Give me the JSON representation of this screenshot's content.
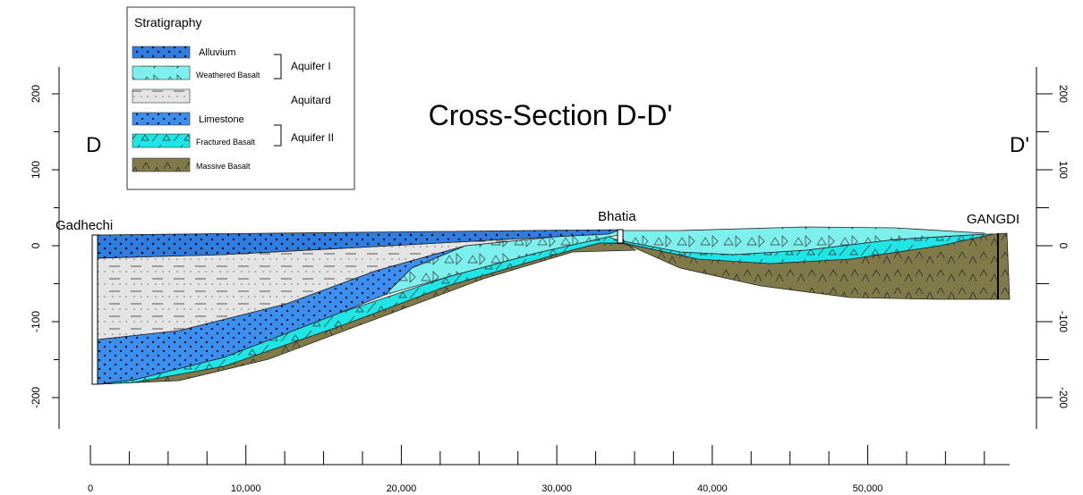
{
  "title": "Cross-Section D-D'",
  "section_ends": [
    "D",
    "D'"
  ],
  "wells": [
    "Gadhechi",
    "Bhatia",
    "GANGDI"
  ],
  "legend": {
    "title": "Stratigraphy",
    "layers": [
      "Alluvium",
      "Weathered Basalt",
      "Limestone",
      "Fractured Basalt",
      "Massive Basalt"
    ],
    "groups": [
      "Aquifer I",
      "Aquitard",
      "Aquifer II"
    ]
  },
  "x_axis": {
    "ticks": [
      0,
      {
        "value": 10000,
        "label": "10,000"
      },
      {
        "value": 20000,
        "label": "20,000"
      },
      {
        "value": 30000,
        "label": "30,000"
      },
      {
        "value": 40000,
        "label": "40,000"
      },
      {
        "value": 50000,
        "label": "50,000"
      }
    ]
  },
  "y_axis": {
    "ticks": [
      200,
      100,
      0,
      -100,
      -200
    ]
  }
}
